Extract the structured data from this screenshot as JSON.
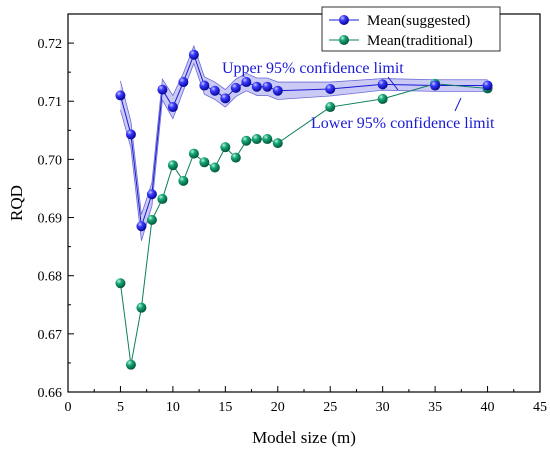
{
  "chart_data": {
    "type": "scatter",
    "xlabel": "Model size (m)",
    "ylabel": "RQD",
    "xlim": [
      0,
      45
    ],
    "ylim": [
      0.66,
      0.725
    ],
    "xticks": [
      0,
      5,
      10,
      15,
      20,
      25,
      30,
      35,
      40,
      45
    ],
    "yticks": [
      0.66,
      0.67,
      0.68,
      0.69,
      0.7,
      0.71,
      0.72
    ],
    "ytick_labels": [
      "0.66",
      "0.67",
      "0.68",
      "0.69",
      "0.70",
      "0.71",
      "0.72"
    ],
    "grid": false,
    "legend": {
      "placement": "top-right"
    },
    "series": [
      {
        "name": "Mean(suggested)",
        "color": "#1a1ad6",
        "marker": "sphere",
        "x": [
          5,
          6,
          7,
          8,
          9,
          10,
          11,
          12,
          13,
          14,
          15,
          16,
          17,
          18,
          19,
          20,
          25,
          30,
          35,
          40
        ],
        "y": [
          0.711,
          0.7043,
          0.6885,
          0.694,
          0.712,
          0.709,
          0.7133,
          0.718,
          0.7127,
          0.7118,
          0.7105,
          0.7123,
          0.7133,
          0.7125,
          0.7125,
          0.7118,
          0.7121,
          0.7129,
          0.7127,
          0.7127
        ],
        "upper": [
          0.7135,
          0.7065,
          0.6905,
          0.696,
          0.7138,
          0.711,
          0.7148,
          0.7195,
          0.7142,
          0.7133,
          0.712,
          0.7138,
          0.7148,
          0.714,
          0.714,
          0.7133,
          0.7133,
          0.7139,
          0.7137,
          0.7137
        ],
        "lower": [
          0.7085,
          0.702,
          0.686,
          0.692,
          0.7102,
          0.707,
          0.7118,
          0.7165,
          0.7112,
          0.7103,
          0.709,
          0.7108,
          0.7118,
          0.711,
          0.711,
          0.7103,
          0.7109,
          0.7119,
          0.7117,
          0.7117
        ]
      },
      {
        "name": "Mean(traditional)",
        "color": "#0d7d5a",
        "marker": "sphere",
        "x": [
          5,
          6,
          7,
          8,
          9,
          10,
          11,
          12,
          13,
          14,
          15,
          16,
          17,
          18,
          19,
          20,
          25,
          30,
          35,
          40
        ],
        "y": [
          0.6787,
          0.6647,
          0.6745,
          0.6896,
          0.6932,
          0.699,
          0.6963,
          0.701,
          0.6995,
          0.6986,
          0.7021,
          0.7003,
          0.7032,
          0.7035,
          0.7035,
          0.7028,
          0.709,
          0.7104,
          0.713,
          0.7122
        ]
      }
    ],
    "annotations": [
      {
        "text": "Upper 95% confidence limit",
        "color": "#1a1ad6"
      },
      {
        "text": "Lower 95% confidence limit",
        "color": "#1a1ad6"
      }
    ]
  }
}
